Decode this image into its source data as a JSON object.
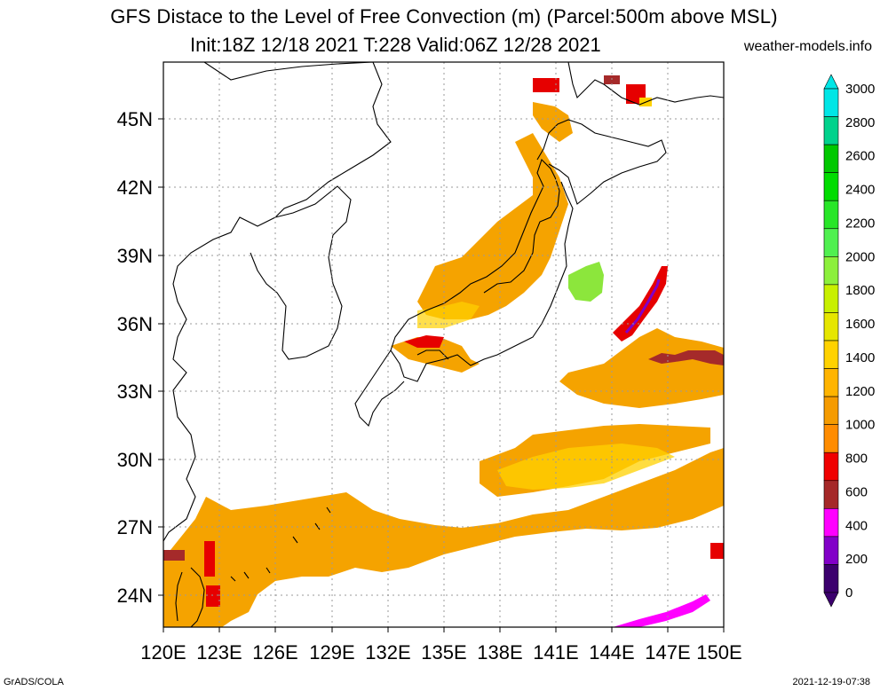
{
  "title": "GFS Distace to the Level of Free Convection (m) (Parcel:500m above MSL)",
  "subtitle": "Init:18Z 12/18 2021 T:228 Valid:06Z 12/28 2021",
  "site": "weather-models.info",
  "footer_left": "GrADS/COLA",
  "footer_right": "2021-12-19-07:38",
  "lon_ticks": [
    "120E",
    "123E",
    "126E",
    "129E",
    "132E",
    "135E",
    "138E",
    "141E",
    "144E",
    "147E",
    "150E"
  ],
  "lat_ticks": [
    "45N",
    "42N",
    "39N",
    "36N",
    "33N",
    "30N",
    "27N",
    "24N"
  ],
  "colorbar": {
    "labels": [
      "3000",
      "2800",
      "2600",
      "2400",
      "2200",
      "2000",
      "1800",
      "1600",
      "1400",
      "1200",
      "1000",
      "800",
      "600",
      "400",
      "200",
      "0"
    ],
    "colors": [
      "#00e6e6",
      "#00d28c",
      "#00c800",
      "#00dc00",
      "#28e628",
      "#50f050",
      "#8cf03c",
      "#c8f000",
      "#e6e600",
      "#ffd200",
      "#ffb400",
      "#f59b00",
      "#ff8c00",
      "#f00000",
      "#a52828",
      "#ff00ff",
      "#8200c8",
      "#3c006e"
    ]
  },
  "colors": {
    "orange": "#f5a300",
    "yellow": "#ffd200",
    "red": "#e60000",
    "brown": "#a52a2a",
    "magenta": "#ff00ff",
    "green": "#8ce63c",
    "purple": "#8200c8"
  }
}
